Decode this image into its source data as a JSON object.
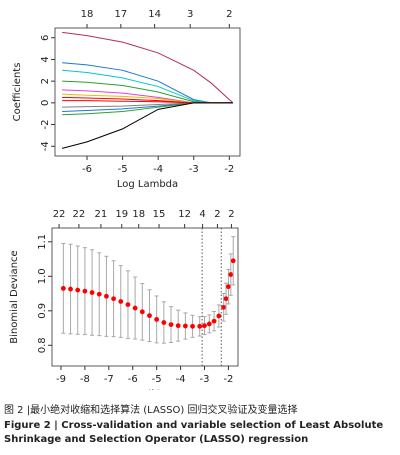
{
  "chart_data": [
    {
      "type": "line",
      "x_label": "Log Lambda",
      "y_label": "Coefficients",
      "x": [
        -6.7,
        -6,
        -5,
        -4,
        -3,
        -2.5,
        -1.9
      ],
      "xlim": [
        -6.9,
        -1.7
      ],
      "xticks": [
        -6,
        -5,
        -4,
        -3,
        -2
      ],
      "ylim": [
        -4.9,
        6.9
      ],
      "yticks": [
        -4,
        -2,
        0,
        2,
        4,
        6
      ],
      "top_ticks": [
        {
          "value": -6,
          "label": "18"
        },
        {
          "value": -5.05,
          "label": "17"
        },
        {
          "value": -4.1,
          "label": "14"
        },
        {
          "value": -3.1,
          "label": "3"
        },
        {
          "value": -2,
          "label": "2"
        }
      ],
      "series": [
        {
          "color": "#b03060",
          "values": [
            6.5,
            6.2,
            5.6,
            4.6,
            3.0,
            1.8,
            0
          ]
        },
        {
          "color": "#1f77d4",
          "values": [
            3.7,
            3.5,
            3.0,
            2.0,
            0.3,
            0,
            0
          ]
        },
        {
          "color": "#00c8c8",
          "values": [
            3.0,
            2.8,
            2.3,
            1.5,
            0.2,
            0,
            0
          ]
        },
        {
          "color": "#2ca02c",
          "values": [
            2.0,
            1.9,
            1.6,
            1.0,
            0.1,
            0,
            0
          ]
        },
        {
          "color": "#e040e0",
          "values": [
            1.2,
            1.1,
            0.9,
            0.5,
            0,
            0,
            0
          ]
        },
        {
          "color": "#e6c000",
          "values": [
            0.8,
            0.7,
            0.6,
            0.4,
            0,
            0,
            0
          ]
        },
        {
          "color": "#ff0000",
          "values": [
            0.5,
            0.45,
            0.35,
            0.2,
            0,
            0,
            0
          ]
        },
        {
          "color": "#808080",
          "values": [
            -0.4,
            -0.35,
            -0.3,
            -0.15,
            0,
            0,
            0
          ]
        },
        {
          "color": "#1f77d4",
          "values": [
            -0.8,
            -0.7,
            -0.55,
            -0.3,
            0,
            0,
            0
          ]
        },
        {
          "color": "#2ca02c",
          "values": [
            -1.1,
            -1.0,
            -0.8,
            -0.4,
            0,
            0,
            0
          ]
        },
        {
          "color": "#ff0000",
          "values": [
            0.2,
            0.2,
            0.15,
            0.1,
            0,
            0,
            0
          ]
        },
        {
          "color": "#000000",
          "values": [
            -4.2,
            -3.6,
            -2.4,
            -0.6,
            0,
            0,
            0
          ]
        }
      ]
    },
    {
      "type": "errorbar",
      "x_label": "Log(λ)",
      "y_label": "Binomial Deviance",
      "x": [
        -8.9,
        -8.6,
        -8.3,
        -8.0,
        -7.7,
        -7.4,
        -7.1,
        -6.8,
        -6.5,
        -6.2,
        -5.9,
        -5.6,
        -5.3,
        -5.0,
        -4.7,
        -4.4,
        -4.1,
        -3.8,
        -3.5,
        -3.2,
        -3.0,
        -2.8,
        -2.6,
        -2.4,
        -2.2,
        -2.1,
        -2.0,
        -1.9,
        -1.8
      ],
      "values": [
        0.965,
        0.963,
        0.96,
        0.957,
        0.953,
        0.948,
        0.942,
        0.935,
        0.927,
        0.918,
        0.908,
        0.897,
        0.886,
        0.875,
        0.866,
        0.86,
        0.857,
        0.856,
        0.855,
        0.855,
        0.857,
        0.862,
        0.87,
        0.885,
        0.91,
        0.935,
        0.97,
        1.005,
        1.045
      ],
      "errors": [
        0.13,
        0.13,
        0.128,
        0.126,
        0.124,
        0.12,
        0.116,
        0.11,
        0.104,
        0.098,
        0.09,
        0.082,
        0.075,
        0.068,
        0.06,
        0.052,
        0.045,
        0.038,
        0.032,
        0.028,
        0.026,
        0.026,
        0.028,
        0.032,
        0.04,
        0.045,
        0.05,
        0.06,
        0.07
      ],
      "color": "#ff0000",
      "error_color": "#a8a8a8",
      "vlines": [
        -3.1,
        -2.3
      ],
      "xlim": [
        -9.375,
        -1.6
      ],
      "xticks": [
        -9,
        -8,
        -7,
        -6,
        -5,
        -4,
        -3,
        -2
      ],
      "ylim": [
        0.74,
        1.14
      ],
      "yticks": [
        {
          "value": 0.8,
          "label": "0.8"
        },
        0.9,
        {
          "value": 1,
          "label": "1.0"
        },
        1.1
      ],
      "top_ticks": [
        {
          "value": -9.08,
          "label": "22"
        },
        {
          "value": -8.25,
          "label": "22"
        },
        {
          "value": -7.33,
          "label": "21"
        },
        {
          "value": -6.46,
          "label": "19"
        },
        {
          "value": -5.75,
          "label": "18"
        },
        {
          "value": -4.9,
          "label": "15"
        },
        {
          "value": -3.83,
          "label": "12"
        },
        {
          "value": -3.08,
          "label": "4"
        },
        {
          "value": -2.46,
          "label": "2"
        },
        {
          "value": -1.875,
          "label": "2"
        }
      ]
    }
  ],
  "caption": {
    "chinese": "图 2 |最小绝对收缩和选择算法 (LASSO) 回归交叉验证及变量选择",
    "english": "Figure 2  |  Cross-validation and variable selection of Least Absolute Shrinkage and Selection Operator (LASSO) regression"
  }
}
